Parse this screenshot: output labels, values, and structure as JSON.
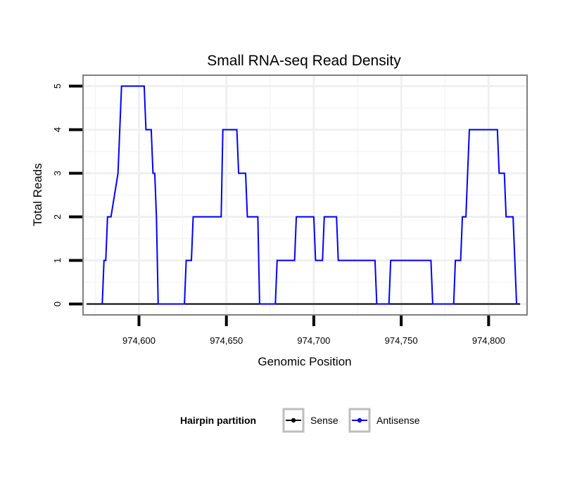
{
  "chart_data": {
    "type": "line",
    "title": "Small RNA-seq Read Density",
    "xlabel": "Genomic Position",
    "ylabel": "Total Reads",
    "xlim": [
      974568,
      974822
    ],
    "ylim": [
      -0.25,
      5.25
    ],
    "x_ticks": [
      974600,
      974650,
      974700,
      974750,
      974800
    ],
    "x_tick_labels": [
      "974,600",
      "974,650",
      "974,700",
      "974,750",
      "974,800"
    ],
    "y_ticks": [
      0,
      1,
      2,
      3,
      4,
      5
    ],
    "y_tick_labels": [
      "0",
      "1",
      "2",
      "3",
      "4",
      "5"
    ],
    "grid": true,
    "legend": {
      "title": "Hairpin partition",
      "placement": "bottom",
      "entries": [
        "Sense",
        "Antisense"
      ]
    },
    "series": [
      {
        "name": "Sense",
        "color": "#000000",
        "x": [
          974570,
          974818
        ],
        "y": [
          0,
          0
        ]
      },
      {
        "name": "Antisense",
        "color": "#0000ff",
        "x": [
          974579,
          974580,
          974581,
          974582,
          974584,
          974588,
          974589,
          974590,
          974603,
          974604,
          974607,
          974608,
          974609,
          974610,
          974611,
          974626,
          974627,
          974630,
          974631,
          974647,
          974648,
          974656,
          974657,
          974661,
          974662,
          974668,
          974669,
          974678,
          974679,
          974689,
          974690,
          974700,
          974701,
          974705,
          974706,
          974713,
          974714,
          974735,
          974736,
          974743,
          974744,
          974767,
          974768,
          974780,
          974781,
          974784,
          974785,
          974787,
          974788,
          974789,
          974790,
          974805,
          974806,
          974809,
          974810,
          974814,
          974815,
          974816
        ],
        "y": [
          0,
          1,
          1,
          2,
          2,
          3,
          4,
          5,
          5,
          4,
          4,
          3,
          3,
          2,
          0,
          0,
          1,
          1,
          2,
          2,
          4,
          4,
          3,
          3,
          2,
          2,
          0,
          0,
          1,
          1,
          2,
          2,
          1,
          1,
          2,
          2,
          1,
          1,
          0,
          0,
          1,
          1,
          0,
          0,
          1,
          1,
          2,
          2,
          3,
          4,
          4,
          4,
          3,
          3,
          2,
          2,
          1,
          0
        ]
      }
    ]
  }
}
